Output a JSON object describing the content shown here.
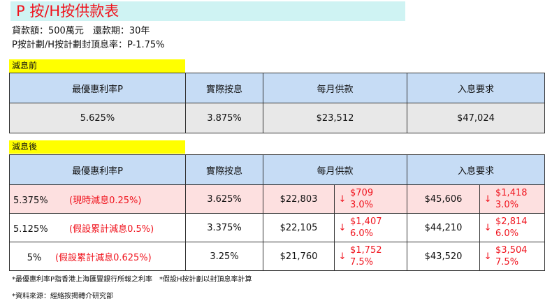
{
  "title": "P 按/H按供款表",
  "info": {
    "line1": "貸款額：500萬元　還款期：30年",
    "line2": "P按計劃/H按計劃封頂息率：P-1.75%"
  },
  "before": {
    "label": "減息前",
    "headers": [
      "最優惠利率P",
      "實際按息",
      "每月供款",
      "入息要求"
    ],
    "row": {
      "prime": "5.625%",
      "rate": "3.875%",
      "payment": "$23,512",
      "income": "$47,024"
    }
  },
  "after": {
    "label": "減息後",
    "headers": [
      "最優惠利率P",
      "實際按息",
      "每月供款",
      "入息要求"
    ],
    "rows": [
      {
        "prime": "5.375%",
        "note": "(現時減息0.25%)",
        "rate": "3.625%",
        "payment": "$22,803",
        "pay_drop": "$709",
        "pay_pct": "3.0%",
        "income": "$45,606",
        "inc_drop": "$1,418",
        "inc_pct": "3.0%"
      },
      {
        "prime": "5.125%",
        "note": "(假設累計減息0.5%)",
        "rate": "3.375%",
        "payment": "$22,105",
        "pay_drop": "$1,407",
        "pay_pct": "6.0%",
        "income": "$44,210",
        "inc_drop": "$2,814",
        "inc_pct": "6.0%"
      },
      {
        "prime": "5%",
        "note": "(假設累計減息0.625%)",
        "rate": "3.25%",
        "payment": "$21,760",
        "pay_drop": "$1,752",
        "pay_pct": "7.5%",
        "income": "$43,520",
        "inc_drop": "$3,504",
        "inc_pct": "7.5%"
      }
    ]
  },
  "arrow": "↓",
  "footnotes": [
    "*最優惠利率P指香港上海匯豐銀行所報之利率　*假設H按計劃以封頂息率計算",
    "*資料來源：經絡按揭轉介研究部"
  ]
}
